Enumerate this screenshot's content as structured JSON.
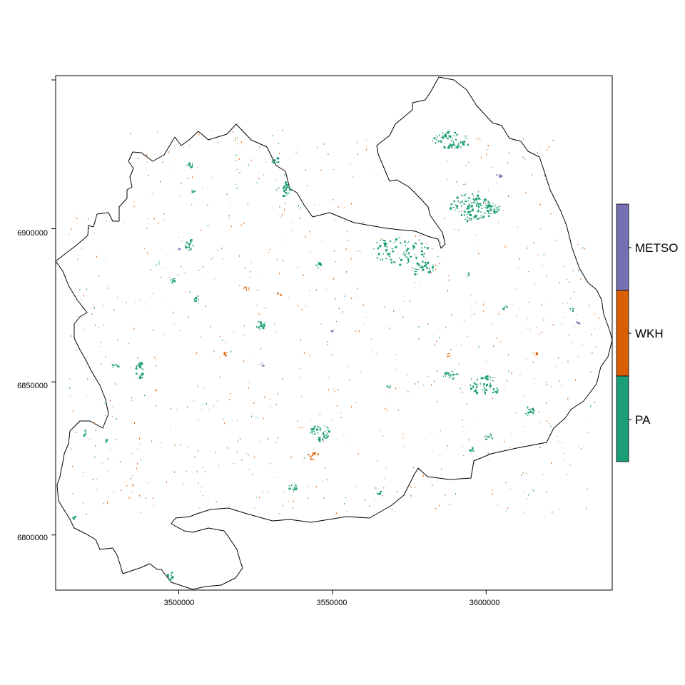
{
  "map": {
    "x_axis": {
      "range": [
        3460000,
        3641000
      ],
      "ticks": [
        3500000,
        3550000,
        3600000
      ],
      "tick_labels": [
        "3500000",
        "3550000",
        "3600000"
      ]
    },
    "y_axis": {
      "range": [
        6782000,
        6950000
      ],
      "ticks": [
        6800000,
        6850000,
        6900000
      ],
      "tick_labels": [
        "6800000",
        "6850000",
        "6900000"
      ]
    },
    "legend": {
      "position": "right",
      "categories": [
        {
          "label": "PA",
          "color": "#1b9e77"
        },
        {
          "label": "WKH",
          "color": "#d95f02"
        },
        {
          "label": "METSO",
          "color": "#7570b3"
        }
      ]
    },
    "boundary_color": "#000000"
  }
}
